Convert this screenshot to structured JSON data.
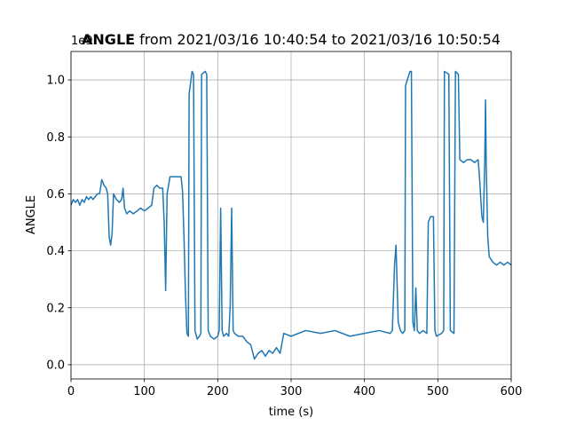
{
  "chart_data": {
    "type": "line",
    "title": {
      "name": "ANGLE",
      "rest": "from 2021/03/16 10:40:54 to 2021/03/16 10:50:54"
    },
    "offset_text": "1e9",
    "xlabel": "time (s)",
    "ylabel": "ANGLE",
    "xlim": [
      0,
      600
    ],
    "ylim": [
      -0.05,
      1.1
    ],
    "xticks": [
      0,
      100,
      200,
      300,
      400,
      500,
      600
    ],
    "yticks": [
      {
        "value": 0,
        "label": "0.0"
      },
      0.2,
      0.4,
      0.6,
      0.8,
      {
        "value": 1,
        "label": "1.0"
      }
    ],
    "grid": true,
    "series": [
      {
        "name": "ANGLE",
        "color": "#1f77b4",
        "x": [
          0,
          3,
          6,
          9,
          12,
          15,
          18,
          21,
          24,
          27,
          30,
          33,
          36,
          39,
          42,
          45,
          48,
          50,
          52,
          54,
          56,
          58,
          62,
          66,
          69,
          71,
          73,
          76,
          80,
          85,
          90,
          95,
          100,
          105,
          110,
          113,
          117,
          121,
          125,
          127,
          129,
          131,
          135,
          140,
          145,
          150,
          152,
          154,
          156,
          158,
          160,
          161,
          165,
          167,
          169,
          172,
          175,
          177,
          178,
          183,
          185,
          187,
          190,
          195,
          200,
          202,
          204,
          206,
          208,
          212,
          215,
          217,
          219,
          221,
          223,
          228,
          234,
          240,
          245,
          250,
          255,
          260,
          265,
          270,
          275,
          280,
          285,
          290,
          300,
          320,
          340,
          360,
          380,
          400,
          420,
          435,
          438,
          441,
          443,
          446,
          449,
          452,
          455,
          456,
          462,
          464,
          466,
          468,
          470,
          472,
          475,
          480,
          485,
          487,
          490,
          494,
          496,
          498,
          505,
          508,
          509,
          515,
          517,
          522,
          524,
          528,
          530,
          535,
          540,
          545,
          550,
          555,
          557,
          560,
          562,
          564,
          565,
          566,
          568,
          570,
          575,
          580,
          585,
          590,
          595,
          600
        ],
        "values": [
          0.56,
          0.58,
          0.57,
          0.58,
          0.56,
          0.58,
          0.57,
          0.59,
          0.58,
          0.59,
          0.58,
          0.59,
          0.6,
          0.6,
          0.65,
          0.63,
          0.62,
          0.6,
          0.45,
          0.42,
          0.46,
          0.6,
          0.58,
          0.57,
          0.58,
          0.62,
          0.55,
          0.53,
          0.54,
          0.53,
          0.54,
          0.55,
          0.54,
          0.55,
          0.56,
          0.62,
          0.63,
          0.62,
          0.62,
          0.5,
          0.26,
          0.6,
          0.66,
          0.66,
          0.66,
          0.66,
          0.61,
          0.45,
          0.25,
          0.11,
          0.1,
          0.95,
          1.03,
          1.02,
          0.12,
          0.09,
          0.1,
          0.11,
          1.02,
          1.03,
          1.02,
          0.12,
          0.1,
          0.09,
          0.1,
          0.12,
          0.55,
          0.12,
          0.1,
          0.11,
          0.1,
          0.21,
          0.55,
          0.12,
          0.11,
          0.1,
          0.1,
          0.08,
          0.07,
          0.02,
          0.04,
          0.05,
          0.03,
          0.05,
          0.04,
          0.06,
          0.04,
          0.11,
          0.1,
          0.12,
          0.11,
          0.12,
          0.1,
          0.11,
          0.12,
          0.11,
          0.12,
          0.35,
          0.42,
          0.15,
          0.12,
          0.11,
          0.12,
          0.98,
          1.03,
          1.03,
          0.15,
          0.12,
          0.27,
          0.12,
          0.11,
          0.12,
          0.11,
          0.5,
          0.52,
          0.52,
          0.12,
          0.1,
          0.11,
          0.12,
          1.03,
          1.02,
          0.12,
          0.11,
          1.03,
          1.02,
          0.72,
          0.71,
          0.72,
          0.72,
          0.71,
          0.72,
          0.65,
          0.52,
          0.5,
          0.72,
          0.93,
          0.7,
          0.45,
          0.38,
          0.36,
          0.35,
          0.36,
          0.35,
          0.36,
          0.35
        ]
      }
    ]
  }
}
